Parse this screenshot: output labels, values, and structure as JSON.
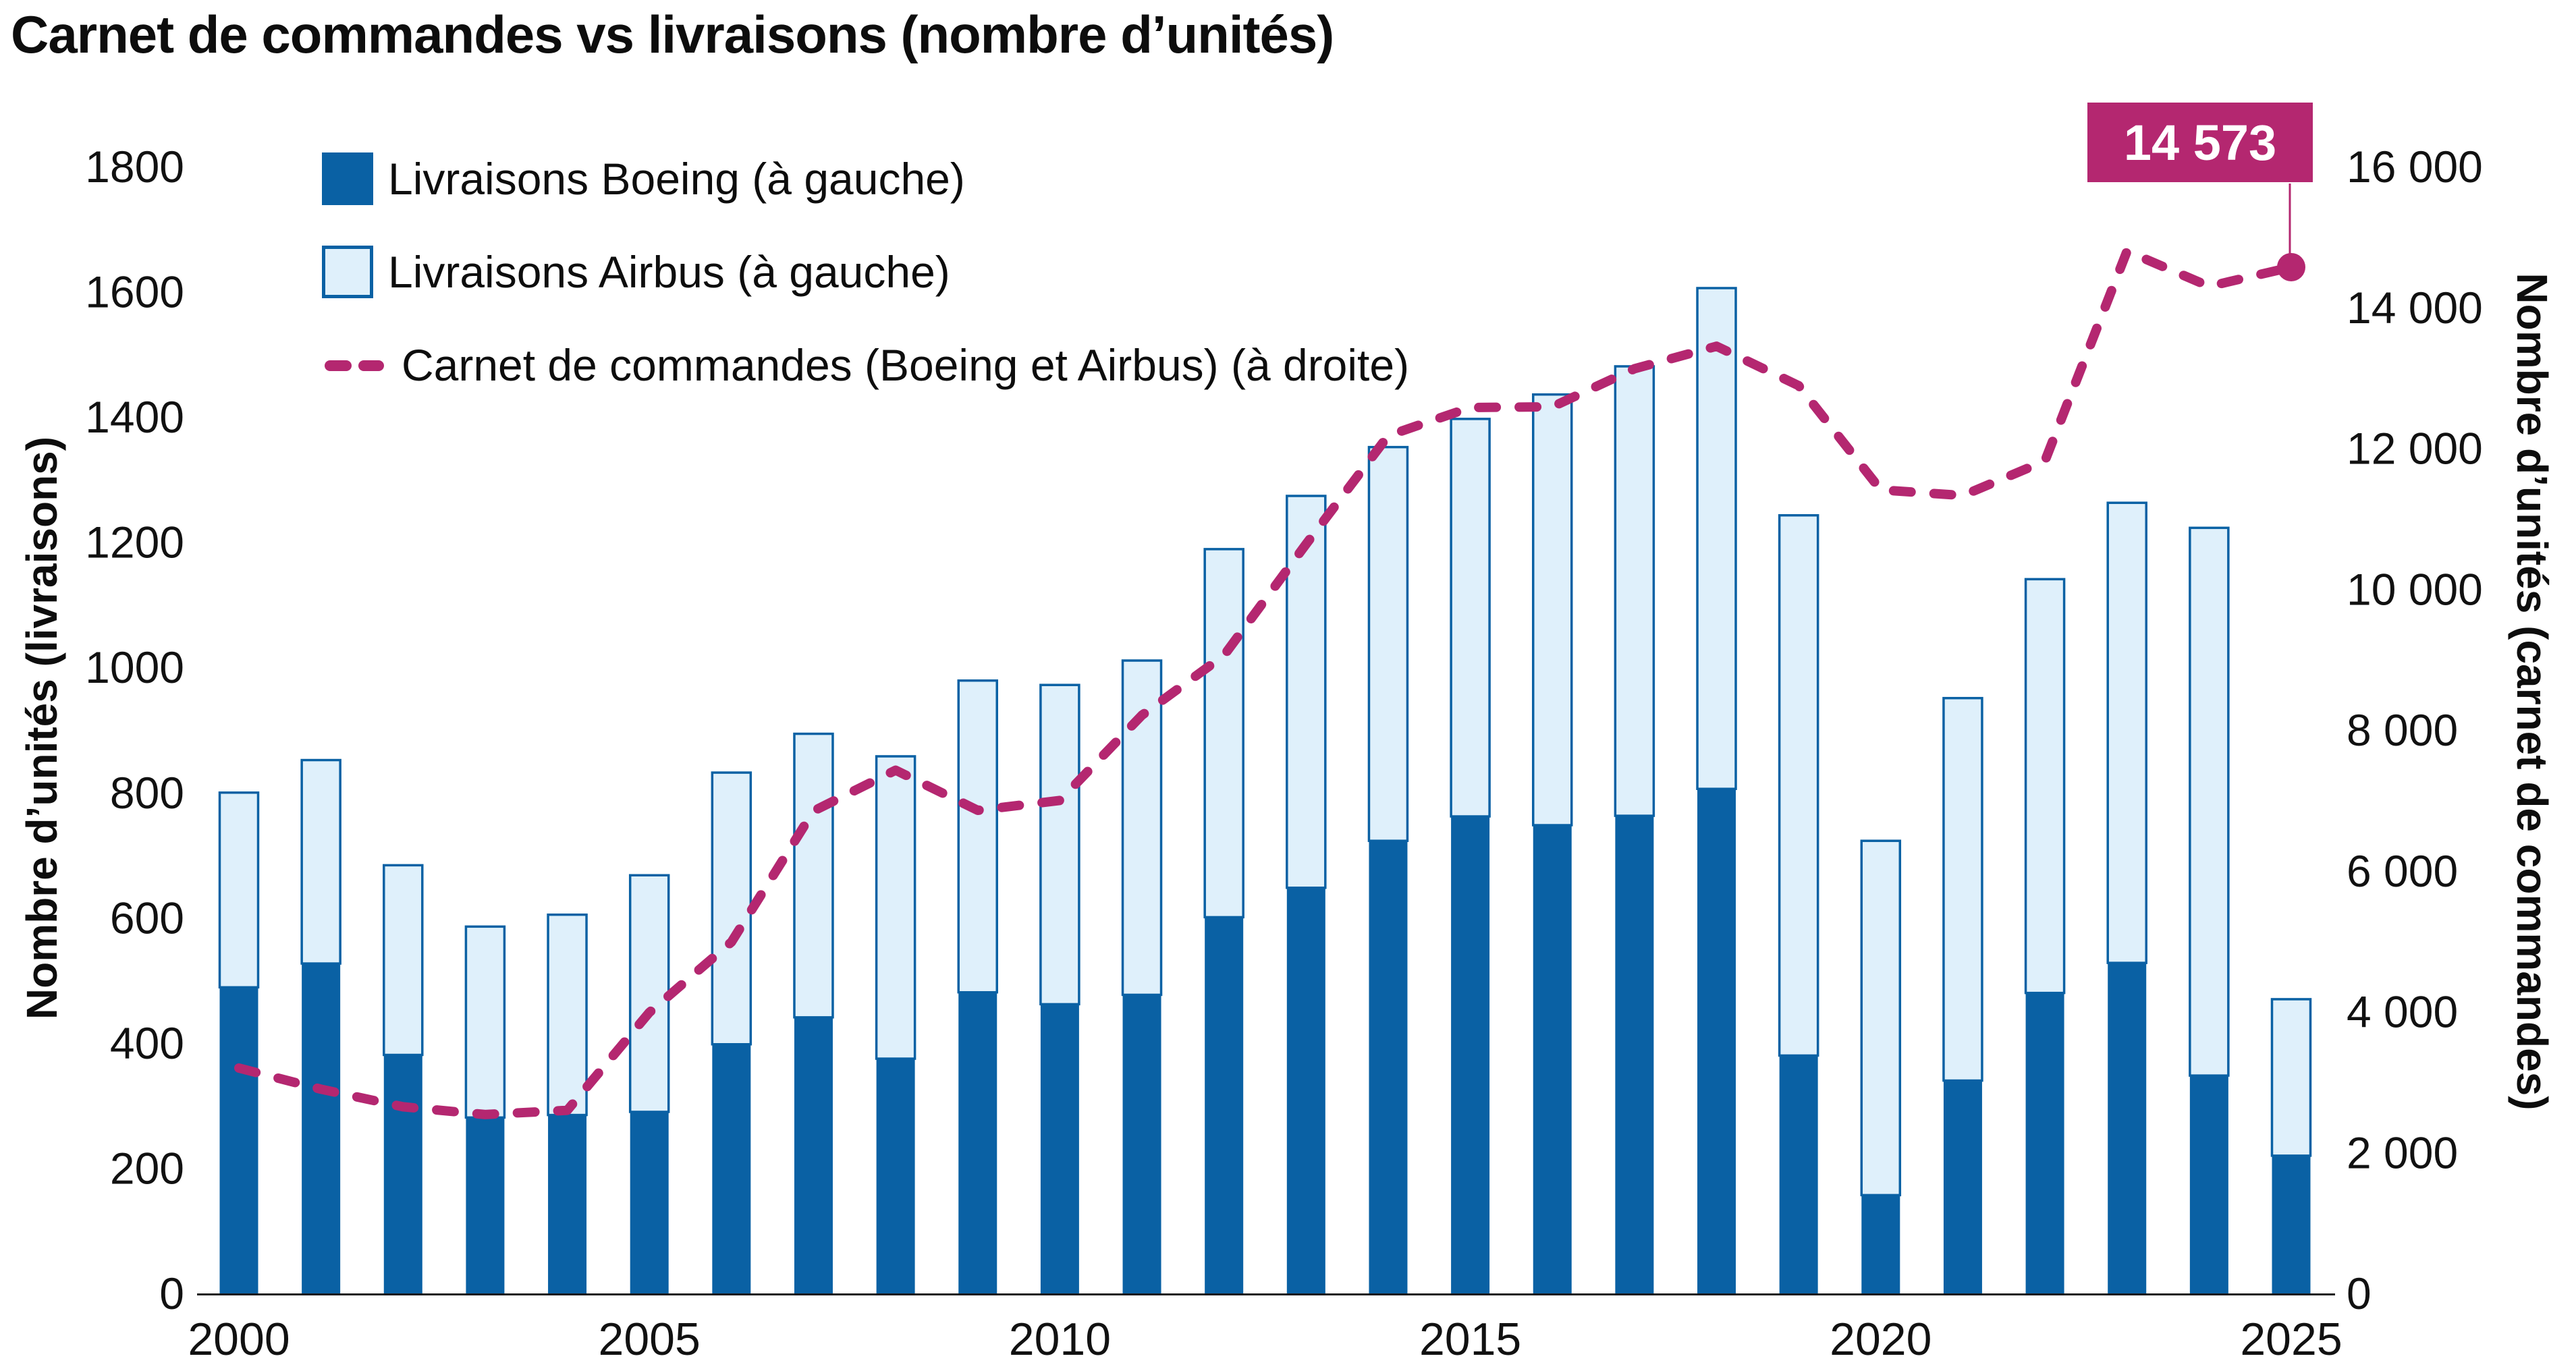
{
  "title": "Carnet de commandes vs livraisons (nombre d’unités)",
  "colors": {
    "boeing_bar": "#0A61A4",
    "airbus_bar_fill": "#DFF0FB",
    "airbus_bar_border": "#0A61A4",
    "backlog_line": "#B42770",
    "callout_bg": "#B42770",
    "callout_text": "#FFFFFF",
    "axis_line": "#1a1a1a",
    "text": "#0d0d0d"
  },
  "legend": {
    "items": [
      {
        "id": "boeing",
        "label": "Livraisons Boeing (à gauche)"
      },
      {
        "id": "airbus",
        "label": "Livraisons Airbus (à gauche)"
      },
      {
        "id": "backlog",
        "label": "Carnet de commandes (Boeing et Airbus) (à droite)"
      }
    ]
  },
  "left_axis": {
    "title": "Nombre d’unités (livraisons)",
    "min": 0,
    "max": 1800,
    "tick_values": [
      0,
      200,
      400,
      600,
      800,
      1000,
      1200,
      1400,
      1600,
      1800
    ],
    "tick_labels": [
      "0",
      "200",
      "400",
      "600",
      "800",
      "1000",
      "1200",
      "1400",
      "1600",
      "1800"
    ]
  },
  "right_axis": {
    "title": "Nombre d’unités (carnet de commandes)",
    "min": 0,
    "max": 16000,
    "tick_values": [
      0,
      2000,
      4000,
      6000,
      8000,
      10000,
      12000,
      14000,
      16000
    ],
    "tick_labels": [
      "0",
      "2 000",
      "4 000",
      "6 000",
      "8 000",
      "10 000",
      "12 000",
      "14 000",
      "16 000"
    ]
  },
  "x_axis": {
    "tick_years": [
      2000,
      2005,
      2010,
      2015,
      2020,
      2025
    ]
  },
  "callout": {
    "label": "14 573",
    "value": 14573,
    "year": 2025
  },
  "chart_data": {
    "type": "bar",
    "subtype": "stacked-bars-with-line",
    "title": "Carnet de commandes vs livraisons (nombre d’unités)",
    "categories": [
      2000,
      2001,
      2002,
      2003,
      2004,
      2005,
      2006,
      2007,
      2008,
      2009,
      2010,
      2011,
      2012,
      2013,
      2014,
      2015,
      2016,
      2017,
      2018,
      2019,
      2020,
      2021,
      2022,
      2023,
      2024,
      2025
    ],
    "series": [
      {
        "name": "Livraisons Boeing (à gauche)",
        "type": "bar",
        "stack": "livraisons",
        "axis": "left",
        "values": [
          489,
          527,
          381,
          281,
          285,
          290,
          398,
          441,
          375,
          481,
          462,
          477,
          601,
          648,
          723,
          762,
          748,
          763,
          806,
          380,
          157,
          340,
          480,
          528,
          348,
          220
        ]
      },
      {
        "name": "Livraisons Airbus (à gauche)",
        "type": "bar",
        "stack": "livraisons",
        "axis": "left",
        "values": [
          311,
          325,
          303,
          305,
          320,
          378,
          434,
          453,
          483,
          498,
          510,
          534,
          588,
          626,
          629,
          635,
          688,
          718,
          800,
          863,
          566,
          611,
          661,
          735,
          875,
          250
        ]
      },
      {
        "name": "Carnet de commandes (Boeing et Airbus) (à droite)",
        "type": "line",
        "style": "dashed",
        "axis": "right",
        "values": [
          3200,
          2900,
          2650,
          2540,
          2600,
          3990,
          4990,
          6850,
          7430,
          6860,
          7000,
          8210,
          9060,
          10640,
          12180,
          12580,
          12590,
          13130,
          13450,
          12890,
          11410,
          11330,
          11820,
          14800,
          14300,
          14573
        ]
      }
    ],
    "ylim_left": [
      0,
      1800
    ],
    "ylim_right": [
      0,
      16000
    ],
    "grid": false,
    "legend_position": "top-left",
    "annotation": {
      "text": "14 573",
      "attached_to": {
        "series": "Carnet de commandes (Boeing et Airbus) (à droite)",
        "x": 2025,
        "y": 14573
      }
    }
  }
}
